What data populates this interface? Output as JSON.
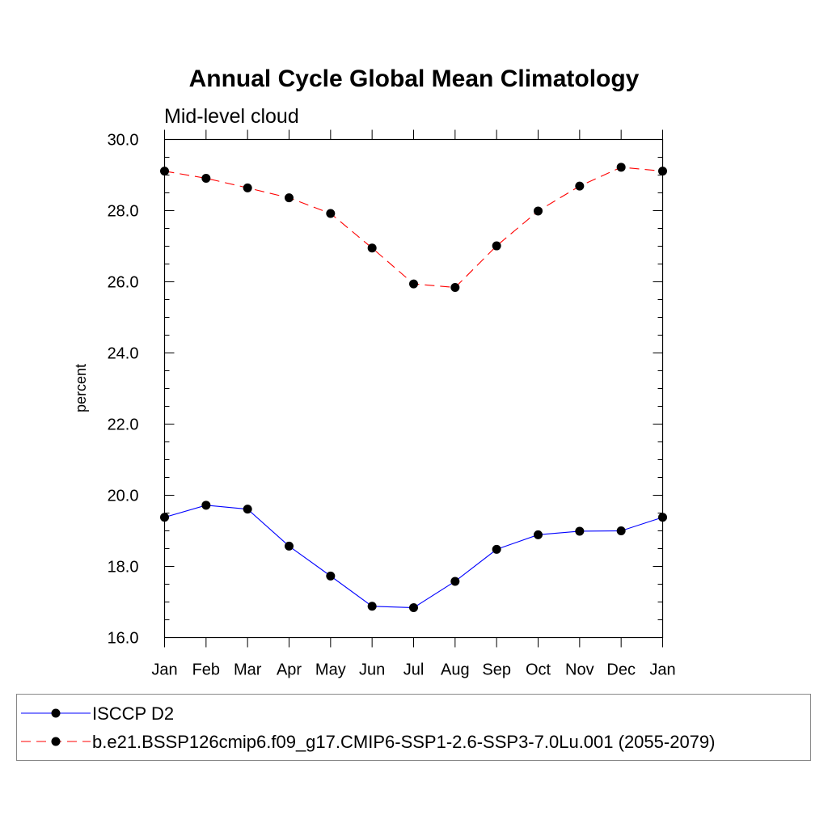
{
  "chart_data": {
    "type": "line",
    "title": "Annual Cycle Global Mean Climatology",
    "subtitle": "Mid-level cloud",
    "xlabel": "",
    "ylabel": "percent",
    "categories": [
      "Jan",
      "Feb",
      "Mar",
      "Apr",
      "May",
      "Jun",
      "Jul",
      "Aug",
      "Sep",
      "Oct",
      "Nov",
      "Dec",
      "Jan"
    ],
    "ylim": [
      16.0,
      30.0
    ],
    "yticks": [
      16.0,
      18.0,
      20.0,
      22.0,
      24.0,
      26.0,
      28.0,
      30.0
    ],
    "ytick_labels": [
      "16.0",
      "18.0",
      "20.0",
      "22.0",
      "24.0",
      "26.0",
      "28.0",
      "30.0"
    ],
    "grid": false,
    "legend_position": "bottom",
    "series": [
      {
        "name": "ISCCP D2",
        "color": "#0000ff",
        "line_style": "solid",
        "marker": "filled-circle",
        "values": [
          19.38,
          19.72,
          19.61,
          18.57,
          17.73,
          16.88,
          16.84,
          17.58,
          18.48,
          18.89,
          18.99,
          19.0,
          19.38
        ]
      },
      {
        "name": "b.e21.BSSP126cmip6.f09_g17.CMIP6-SSP1-2.6-SSP3-7.0Lu.001 (2055-2079)",
        "color": "#ff0000",
        "line_style": "dashed",
        "marker": "filled-circle",
        "values": [
          29.11,
          28.91,
          28.64,
          28.36,
          27.92,
          26.95,
          25.94,
          25.84,
          27.01,
          27.99,
          28.69,
          29.22,
          29.11
        ]
      }
    ]
  }
}
